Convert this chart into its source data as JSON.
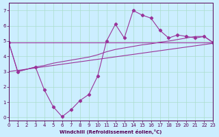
{
  "xlabel": "Windchill (Refroidissement éolien,°C)",
  "background_color": "#cceeff",
  "grid_color": "#aaddcc",
  "line_color": "#993399",
  "x_ticks": [
    0,
    1,
    2,
    3,
    4,
    5,
    6,
    7,
    8,
    9,
    10,
    11,
    12,
    13,
    14,
    15,
    16,
    17,
    18,
    19,
    20,
    21,
    22,
    23
  ],
  "y_ticks": [
    0,
    1,
    2,
    3,
    4,
    5,
    6,
    7
  ],
  "xlim": [
    0,
    23
  ],
  "ylim": [
    -0.2,
    7.5
  ],
  "line1_x": [
    0,
    1,
    3,
    4,
    5,
    6,
    7,
    8,
    9,
    10,
    11,
    12,
    13,
    14,
    15,
    16,
    17,
    18,
    19,
    20,
    21,
    22,
    23
  ],
  "line1_y": [
    4.9,
    3.0,
    3.3,
    1.8,
    0.7,
    0.05,
    0.5,
    1.1,
    1.5,
    2.7,
    5.0,
    6.1,
    5.2,
    7.0,
    6.7,
    6.5,
    5.7,
    5.2,
    5.4,
    5.3,
    5.2,
    5.3,
    4.9
  ],
  "line2_x": [
    0,
    1,
    3,
    4,
    5,
    6,
    7,
    8,
    9,
    10,
    11,
    12,
    13,
    14,
    15,
    16,
    17,
    18,
    19,
    20,
    21,
    22,
    23
  ],
  "line2_y": [
    4.9,
    3.0,
    3.3,
    3.4,
    3.55,
    3.65,
    3.75,
    3.85,
    3.95,
    4.1,
    4.3,
    4.45,
    4.55,
    4.65,
    4.75,
    4.82,
    4.92,
    5.0,
    5.1,
    5.2,
    5.3,
    5.3,
    4.9
  ],
  "line3_x": [
    0,
    23
  ],
  "line3_y": [
    3.0,
    4.85
  ],
  "line4_x": [
    0,
    23
  ],
  "line4_y": [
    4.9,
    4.9
  ]
}
